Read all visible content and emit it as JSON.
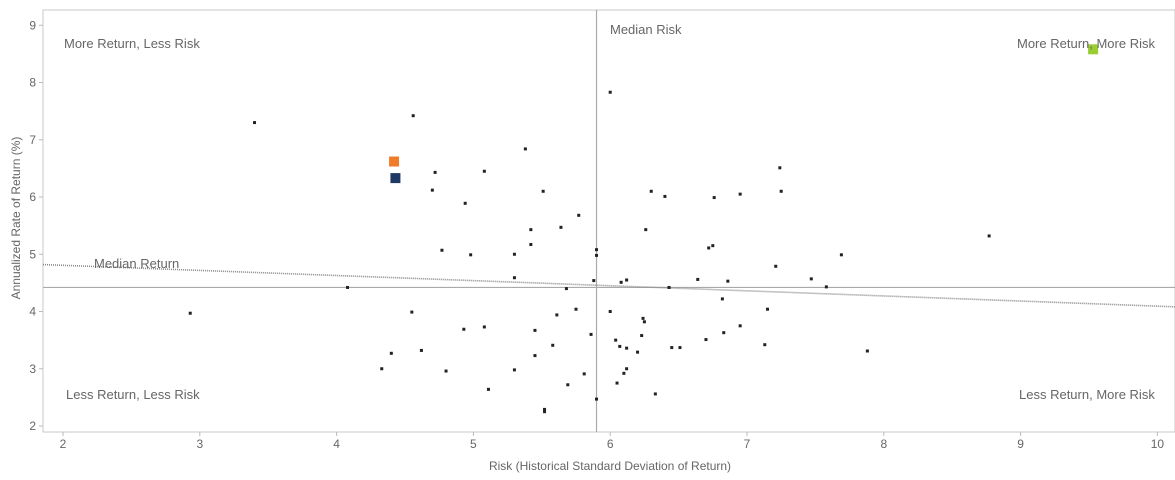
{
  "chart_data": {
    "type": "scatter",
    "xlabel": "Risk (Historical Standard Deviation of Return)",
    "ylabel": "Annualized Rate of Return (%)",
    "xlim": [
      2,
      10
    ],
    "ylim": [
      2,
      9
    ],
    "x_ticks": [
      2,
      3,
      4,
      5,
      6,
      7,
      8,
      9,
      10
    ],
    "y_ticks": [
      2,
      3,
      4,
      5,
      6,
      7,
      8,
      9
    ],
    "grid": false,
    "median_risk": 5.9,
    "median_return": 4.42,
    "median_risk_label": "Median Risk",
    "median_return_label": "Median Return",
    "quadrant_labels": {
      "top_left": "More Return, Less Risk",
      "top_right": "More Return, More Risk",
      "bottom_left": "Less Return, Less Risk",
      "bottom_right": "Less Return, More Risk"
    },
    "trend_line": {
      "x": [
        2,
        10.15
      ],
      "y": [
        4.82,
        4.08
      ]
    },
    "colors": {
      "point": "#222222",
      "highlight_orange": "#f07c2a",
      "highlight_navy": "#1f3864",
      "highlight_green": "#9acd32",
      "median_line": "#aaaaaa",
      "trend_line": "#888888"
    },
    "points": [
      {
        "x": 2.93,
        "y": 3.97
      },
      {
        "x": 3.4,
        "y": 7.3
      },
      {
        "x": 4.08,
        "y": 4.42
      },
      {
        "x": 4.33,
        "y": 3.0
      },
      {
        "x": 4.4,
        "y": 3.27
      },
      {
        "x": 4.55,
        "y": 3.99
      },
      {
        "x": 4.56,
        "y": 7.42
      },
      {
        "x": 4.62,
        "y": 3.32
      },
      {
        "x": 4.7,
        "y": 6.12
      },
      {
        "x": 4.72,
        "y": 6.43
      },
      {
        "x": 4.77,
        "y": 5.07
      },
      {
        "x": 4.8,
        "y": 2.96
      },
      {
        "x": 4.93,
        "y": 3.69
      },
      {
        "x": 4.94,
        "y": 5.89
      },
      {
        "x": 4.98,
        "y": 4.99
      },
      {
        "x": 5.08,
        "y": 6.45
      },
      {
        "x": 5.08,
        "y": 3.73
      },
      {
        "x": 5.11,
        "y": 2.64
      },
      {
        "x": 5.3,
        "y": 2.98
      },
      {
        "x": 5.3,
        "y": 4.59
      },
      {
        "x": 5.3,
        "y": 5.0
      },
      {
        "x": 5.38,
        "y": 6.84
      },
      {
        "x": 5.42,
        "y": 5.17
      },
      {
        "x": 5.42,
        "y": 5.43
      },
      {
        "x": 5.45,
        "y": 3.23
      },
      {
        "x": 5.45,
        "y": 3.67
      },
      {
        "x": 5.51,
        "y": 6.1
      },
      {
        "x": 5.52,
        "y": 2.29
      },
      {
        "x": 5.52,
        "y": 2.25
      },
      {
        "x": 5.58,
        "y": 3.41
      },
      {
        "x": 5.61,
        "y": 3.94
      },
      {
        "x": 5.64,
        "y": 5.47
      },
      {
        "x": 5.68,
        "y": 4.4
      },
      {
        "x": 5.69,
        "y": 2.72
      },
      {
        "x": 5.75,
        "y": 4.04
      },
      {
        "x": 5.77,
        "y": 5.68
      },
      {
        "x": 5.81,
        "y": 2.91
      },
      {
        "x": 5.86,
        "y": 3.6
      },
      {
        "x": 5.88,
        "y": 4.54
      },
      {
        "x": 5.9,
        "y": 5.08
      },
      {
        "x": 5.9,
        "y": 4.98
      },
      {
        "x": 5.9,
        "y": 2.47
      },
      {
        "x": 6.0,
        "y": 7.83
      },
      {
        "x": 6.0,
        "y": 4.0
      },
      {
        "x": 6.04,
        "y": 3.5
      },
      {
        "x": 6.05,
        "y": 2.75
      },
      {
        "x": 6.07,
        "y": 3.39
      },
      {
        "x": 6.08,
        "y": 4.51
      },
      {
        "x": 6.1,
        "y": 2.92
      },
      {
        "x": 6.12,
        "y": 3.36
      },
      {
        "x": 6.12,
        "y": 3.0
      },
      {
        "x": 6.12,
        "y": 4.55
      },
      {
        "x": 6.2,
        "y": 3.29
      },
      {
        "x": 6.23,
        "y": 3.58
      },
      {
        "x": 6.24,
        "y": 3.88
      },
      {
        "x": 6.25,
        "y": 3.82
      },
      {
        "x": 6.26,
        "y": 5.43
      },
      {
        "x": 6.3,
        "y": 6.1
      },
      {
        "x": 6.33,
        "y": 2.56
      },
      {
        "x": 6.4,
        "y": 6.01
      },
      {
        "x": 6.43,
        "y": 4.42
      },
      {
        "x": 6.45,
        "y": 3.37
      },
      {
        "x": 6.51,
        "y": 3.37
      },
      {
        "x": 6.64,
        "y": 4.56
      },
      {
        "x": 6.7,
        "y": 3.51
      },
      {
        "x": 6.72,
        "y": 5.11
      },
      {
        "x": 6.75,
        "y": 5.15
      },
      {
        "x": 6.76,
        "y": 5.99
      },
      {
        "x": 6.82,
        "y": 4.22
      },
      {
        "x": 6.83,
        "y": 3.63
      },
      {
        "x": 6.86,
        "y": 4.53
      },
      {
        "x": 6.95,
        "y": 6.05
      },
      {
        "x": 6.95,
        "y": 3.75
      },
      {
        "x": 7.13,
        "y": 3.42
      },
      {
        "x": 7.15,
        "y": 4.04
      },
      {
        "x": 7.21,
        "y": 4.79
      },
      {
        "x": 7.24,
        "y": 6.51
      },
      {
        "x": 7.25,
        "y": 6.1
      },
      {
        "x": 7.47,
        "y": 4.57
      },
      {
        "x": 7.58,
        "y": 4.43
      },
      {
        "x": 7.69,
        "y": 4.99
      },
      {
        "x": 7.88,
        "y": 3.31
      },
      {
        "x": 8.77,
        "y": 5.32
      }
    ],
    "highlighted_points": [
      {
        "x": 4.42,
        "y": 6.62,
        "color": "#f07c2a"
      },
      {
        "x": 4.43,
        "y": 6.33,
        "color": "#1f3864"
      },
      {
        "x": 9.53,
        "y": 8.58,
        "color": "#9acd32"
      }
    ]
  }
}
